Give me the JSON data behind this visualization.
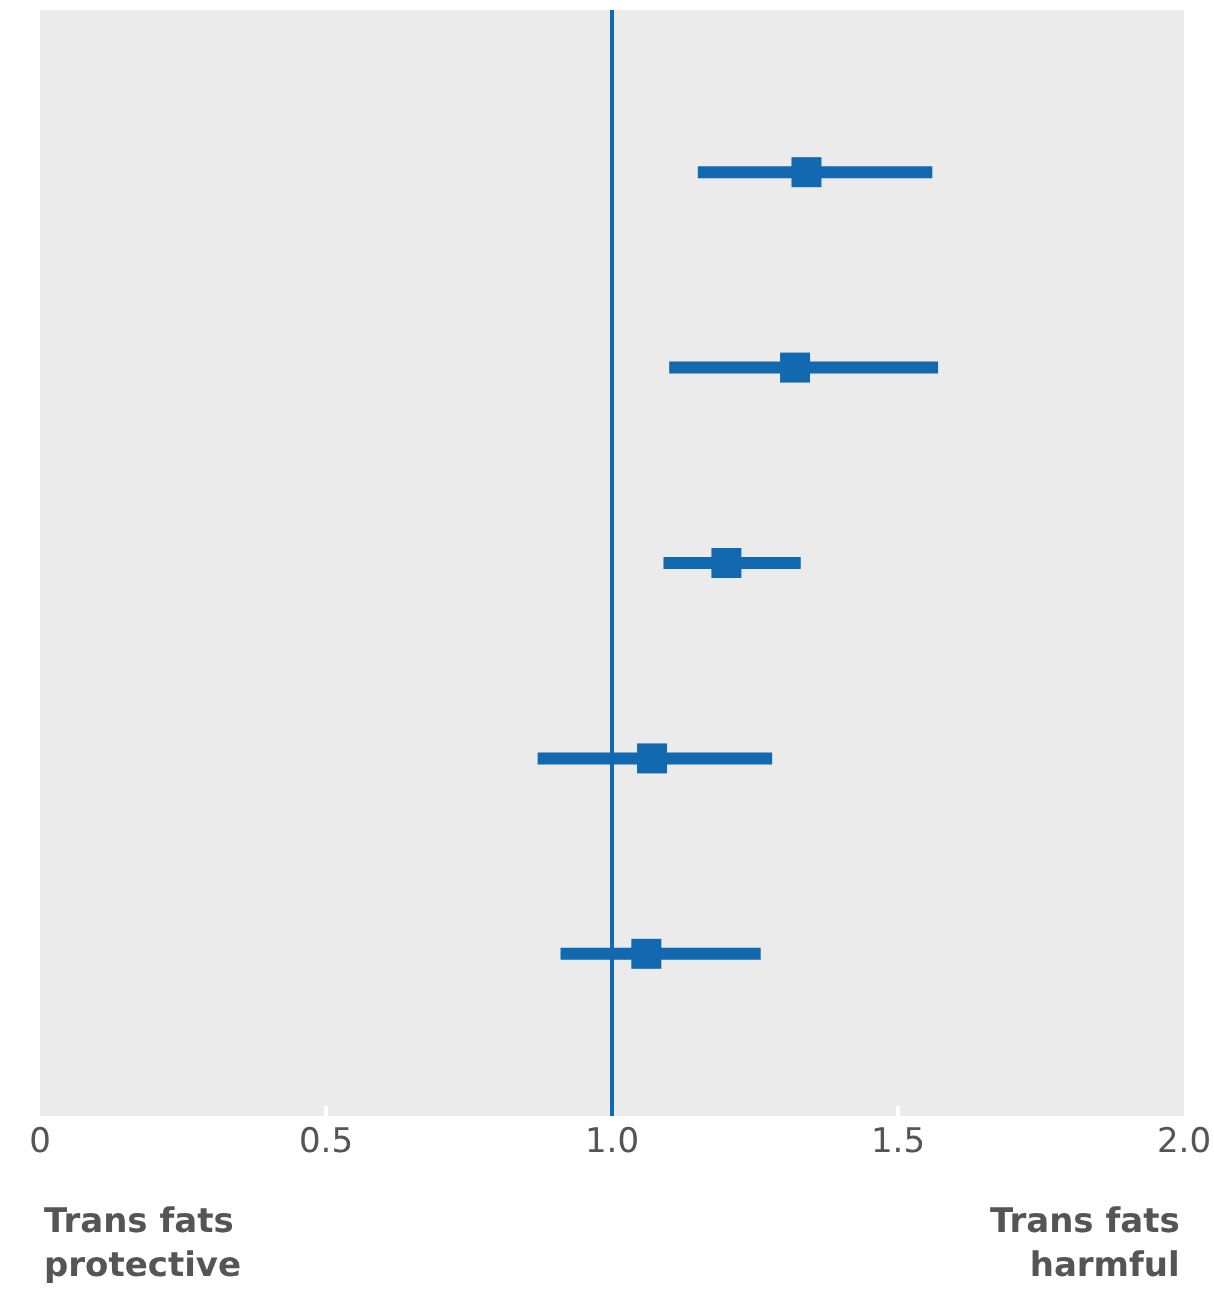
{
  "chart_data": {
    "type": "scatter",
    "orientation": "horizontal",
    "categories": [
      null,
      null,
      null,
      null,
      null
    ],
    "series": [
      {
        "color": "#1369b0",
        "values": [
          1.34,
          1.32,
          1.2,
          1.07,
          1.06
        ],
        "errors": [
          [
            1.15,
            1.56
          ],
          [
            1.1,
            1.57
          ],
          [
            1.09,
            1.33
          ],
          [
            0.87,
            1.28
          ],
          [
            0.91,
            1.26
          ]
        ]
      }
    ],
    "xlim": [
      0,
      2
    ],
    "xticks": [
      0,
      {
        "value": 0.5,
        "label": "0.5"
      },
      {
        "value": 1,
        "label": "1.0"
      },
      {
        "value": 1.5,
        "label": "1.5"
      },
      {
        "value": 2,
        "label": "2.0"
      }
    ],
    "ref_lines": [
      {
        "axis": "x",
        "value": 1,
        "color": "#1369b0"
      }
    ],
    "annotations": [
      "Trans fats\nprotective",
      "Trans fats\nharmful"
    ],
    "marker": "square",
    "grid": false,
    "tick_labels": "x"
  }
}
